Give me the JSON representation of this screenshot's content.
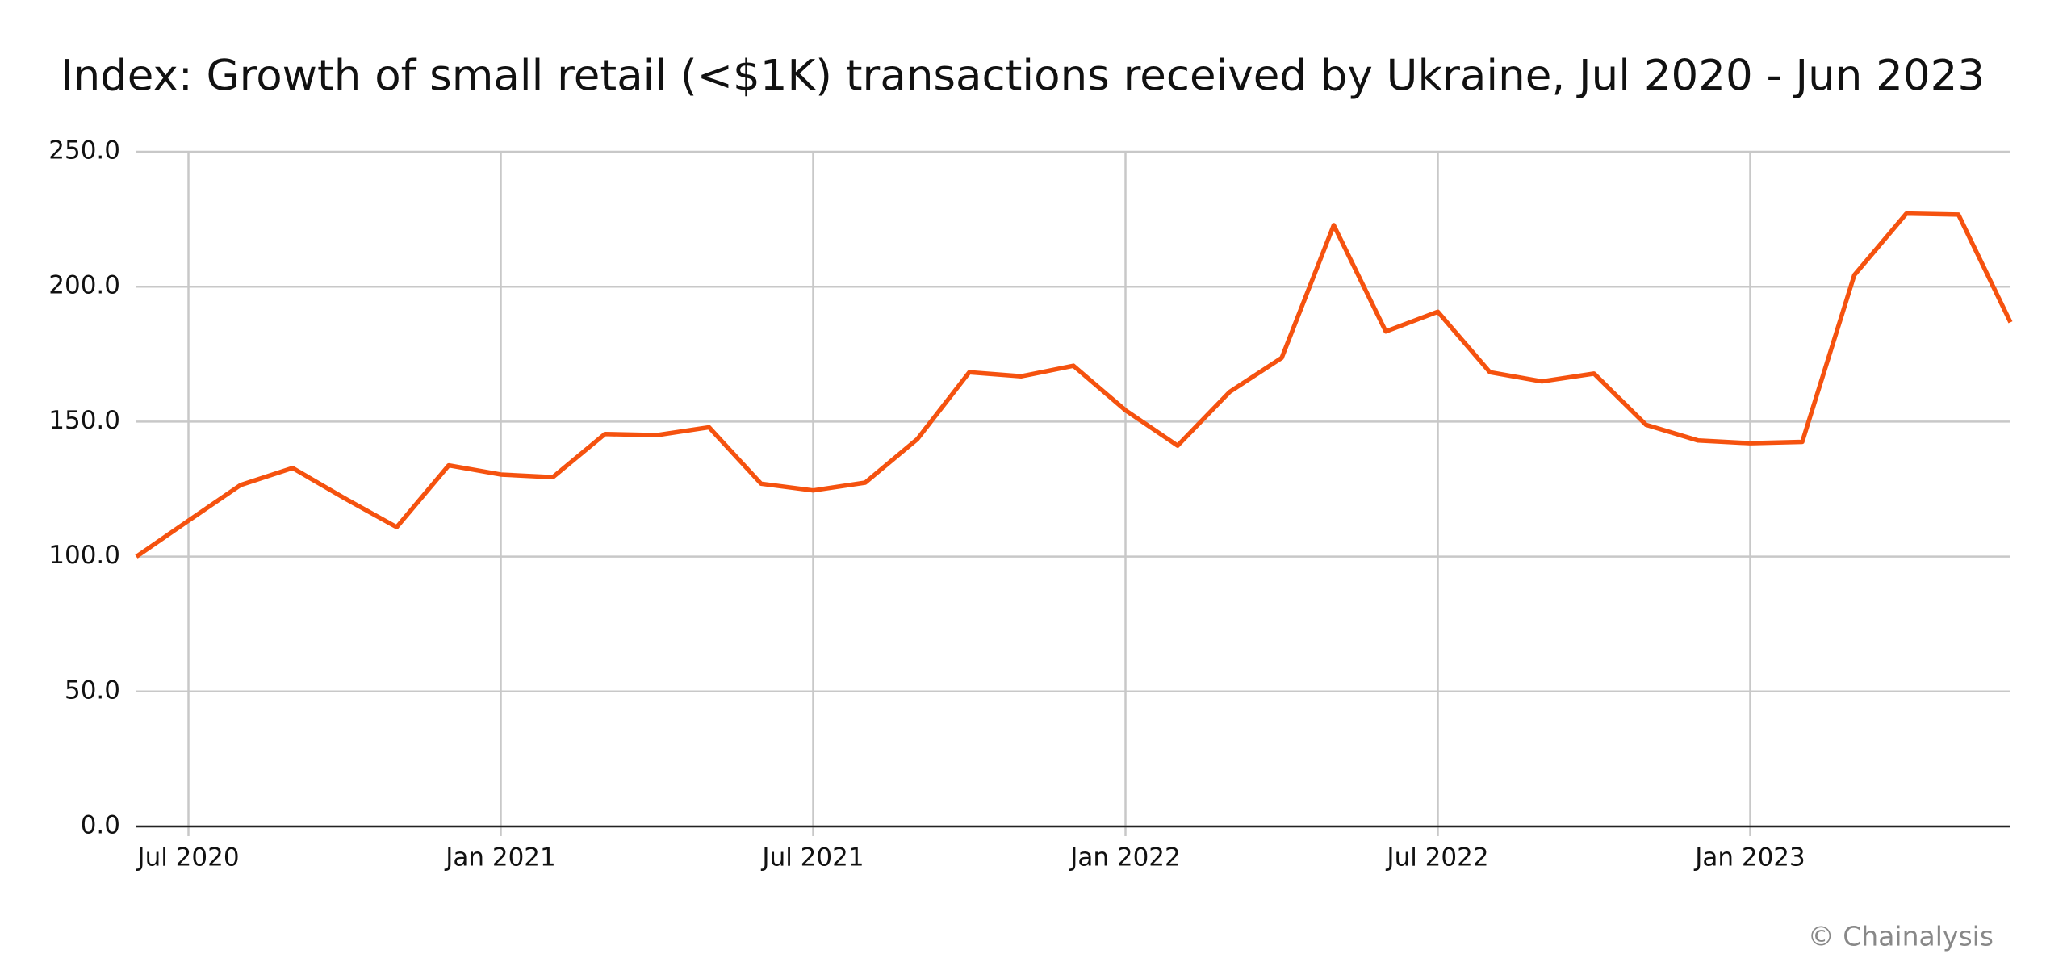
{
  "chart_data": {
    "type": "line",
    "title": "Index: Growth of small retail (<$1K) transactions received by Ukraine, Jul 2020 - Jun 2023",
    "credit": "© Chainalysis",
    "x": [
      "2020-06",
      "2020-07",
      "2020-08",
      "2020-09",
      "2020-10",
      "2020-11",
      "2020-12",
      "2021-01",
      "2021-02",
      "2021-03",
      "2021-04",
      "2021-05",
      "2021-06",
      "2021-07",
      "2021-08",
      "2021-09",
      "2021-10",
      "2021-11",
      "2021-12",
      "2022-01",
      "2022-02",
      "2022-03",
      "2022-04",
      "2022-05",
      "2022-06",
      "2022-07",
      "2022-08",
      "2022-09",
      "2022-10",
      "2022-11",
      "2022-12",
      "2023-01",
      "2023-02",
      "2023-03",
      "2023-04",
      "2023-05",
      "2023-06"
    ],
    "series": [
      {
        "name": "Index",
        "color": "#f5520f",
        "values": [
          100.0,
          113.3,
          126.5,
          132.8,
          121.6,
          110.9,
          133.8,
          130.4,
          129.4,
          145.4,
          145.0,
          147.9,
          127.0,
          124.5,
          127.4,
          143.5,
          168.3,
          166.8,
          170.7,
          154.2,
          141.1,
          161.0,
          173.6,
          222.8,
          183.4,
          190.7,
          168.3,
          164.9,
          167.8,
          148.8,
          143.0,
          142.0,
          142.5,
          204.3,
          227.1,
          226.7,
          186.8
        ]
      }
    ],
    "xlim": [
      "2020-06",
      "2023-06"
    ],
    "xticks": [
      {
        "value": "2020-07",
        "label": "Jul 2020"
      },
      {
        "value": "2021-01",
        "label": "Jan 2021"
      },
      {
        "value": "2021-07",
        "label": "Jul 2021"
      },
      {
        "value": "2022-01",
        "label": "Jan 2022"
      },
      {
        "value": "2022-07",
        "label": "Jul 2022"
      },
      {
        "value": "2023-01",
        "label": "Jan 2023"
      }
    ],
    "ylim": [
      0,
      250
    ],
    "yticks": [
      {
        "value": 0,
        "label": "0.0"
      },
      {
        "value": 50,
        "label": "50.0"
      },
      {
        "value": 100,
        "label": "100.0"
      },
      {
        "value": 150,
        "label": "150.0"
      },
      {
        "value": 200,
        "label": "200.0"
      },
      {
        "value": 250,
        "label": "250.0"
      }
    ],
    "grid": true
  }
}
